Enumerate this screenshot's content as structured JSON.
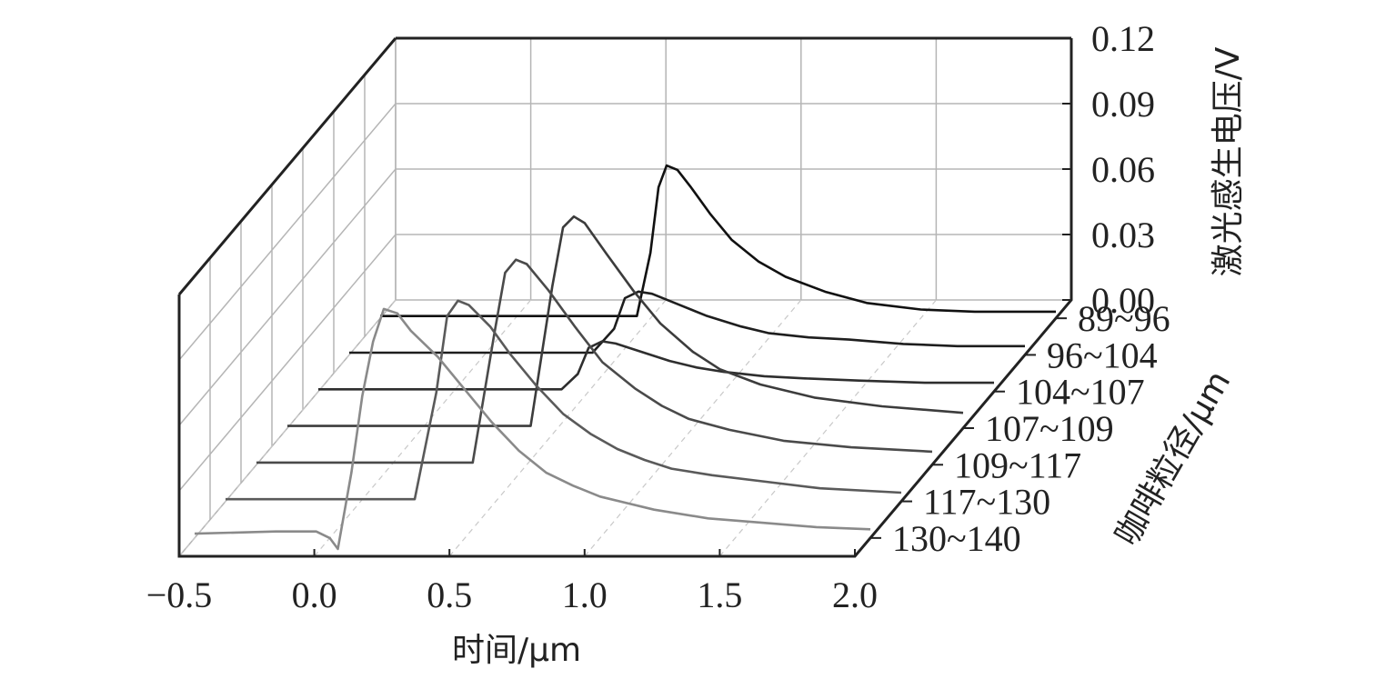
{
  "chart_data": {
    "type": "line",
    "projection": "3d-waterfall",
    "title": "",
    "xlabel": "时间/μm",
    "ylabel": "咖啡粒径/μm",
    "zlabel": "激光感生电压/V",
    "xlim": [
      -0.5,
      2.0
    ],
    "zlim": [
      0.0,
      0.12
    ],
    "x_ticks": [
      "−0.5",
      "0.0",
      "0.5",
      "1.0",
      "1.5",
      "2.0"
    ],
    "z_ticks": [
      "0.00",
      "0.03",
      "0.06",
      "0.09",
      "0.12"
    ],
    "categories": [
      "130~140",
      "117~130",
      "109~117",
      "107~109",
      "104~107",
      "96~104",
      "89~96"
    ],
    "grid": true,
    "series": [
      {
        "name": "130~140",
        "color": "#8a8a8a",
        "x": [
          -0.5,
          -0.2,
          -0.05,
          0.0,
          0.03,
          0.08,
          0.12,
          0.16,
          0.2,
          0.25,
          0.3,
          0.4,
          0.5,
          0.6,
          0.7,
          0.8,
          0.9,
          1.0,
          1.1,
          1.2,
          1.4,
          1.6,
          1.8,
          2.0
        ],
        "y": [
          0.002,
          0.003,
          0.003,
          0.0,
          -0.005,
          0.03,
          0.065,
          0.09,
          0.105,
          0.103,
          0.095,
          0.083,
          0.068,
          0.053,
          0.04,
          0.03,
          0.024,
          0.019,
          0.016,
          0.013,
          0.009,
          0.007,
          0.005,
          0.004
        ]
      },
      {
        "name": "117~130",
        "color": "#5a5a5a",
        "x": [
          -0.5,
          0.0,
          0.2,
          0.28,
          0.32,
          0.36,
          0.4,
          0.48,
          0.55,
          0.65,
          0.75,
          0.85,
          0.95,
          1.05,
          1.15,
          1.3,
          1.5,
          1.7,
          2.0
        ],
        "y": [
          0.001,
          0.001,
          0.001,
          0.05,
          0.085,
          0.092,
          0.09,
          0.08,
          0.068,
          0.053,
          0.04,
          0.031,
          0.024,
          0.019,
          0.015,
          0.012,
          0.009,
          0.006,
          0.004
        ]
      },
      {
        "name": "109~117",
        "color": "#4a4a4a",
        "x": [
          -0.5,
          0.0,
          0.3,
          0.38,
          0.42,
          0.46,
          0.5,
          0.58,
          0.68,
          0.78,
          0.9,
          1.0,
          1.1,
          1.25,
          1.45,
          1.7,
          2.0
        ],
        "y": [
          0.001,
          0.001,
          0.001,
          0.06,
          0.088,
          0.094,
          0.092,
          0.08,
          0.063,
          0.047,
          0.035,
          0.027,
          0.021,
          0.016,
          0.011,
          0.008,
          0.006
        ]
      },
      {
        "name": "107~109",
        "color": "#3c3c3c",
        "x": [
          -0.5,
          0.0,
          0.4,
          0.48,
          0.52,
          0.56,
          0.6,
          0.68,
          0.78,
          0.88,
          1.0,
          1.1,
          1.25,
          1.45,
          1.7,
          2.0
        ],
        "y": [
          0.001,
          0.001,
          0.001,
          0.065,
          0.092,
          0.097,
          0.094,
          0.08,
          0.063,
          0.048,
          0.035,
          0.027,
          0.02,
          0.014,
          0.01,
          0.007
        ]
      },
      {
        "name": "104~107",
        "color": "#2e2e2e",
        "x": [
          -0.5,
          0.0,
          0.4,
          0.46,
          0.5,
          0.55,
          0.6,
          0.7,
          0.8,
          0.9,
          1.0,
          1.15,
          1.3,
          1.5,
          1.75,
          2.0
        ],
        "y": [
          0.001,
          0.001,
          0.001,
          0.008,
          0.02,
          0.023,
          0.022,
          0.018,
          0.014,
          0.011,
          0.009,
          0.007,
          0.006,
          0.005,
          0.004,
          0.004
        ]
      },
      {
        "name": "96~104",
        "color": "#1e1e1e",
        "x": [
          -0.5,
          0.0,
          0.4,
          0.48,
          0.52,
          0.57,
          0.62,
          0.72,
          0.82,
          0.95,
          1.05,
          1.2,
          1.35,
          1.55,
          1.75,
          2.0
        ],
        "y": [
          0.001,
          0.001,
          0.001,
          0.012,
          0.026,
          0.029,
          0.028,
          0.023,
          0.018,
          0.013,
          0.01,
          0.008,
          0.007,
          0.005,
          0.004,
          0.004
        ]
      },
      {
        "name": "89~96",
        "color": "#111111",
        "x": [
          -0.5,
          0.0,
          0.45,
          0.5,
          0.53,
          0.56,
          0.6,
          0.65,
          0.72,
          0.8,
          0.9,
          1.0,
          1.15,
          1.3,
          1.5,
          1.7,
          2.0
        ],
        "y": [
          0.001,
          0.001,
          0.001,
          0.03,
          0.06,
          0.07,
          0.068,
          0.06,
          0.048,
          0.036,
          0.026,
          0.019,
          0.012,
          0.007,
          0.004,
          0.003,
          0.003
        ]
      }
    ]
  }
}
